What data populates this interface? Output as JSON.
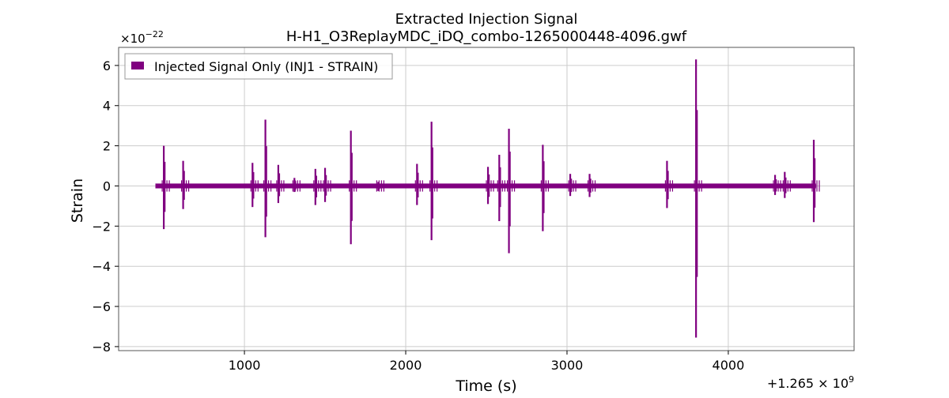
{
  "chart_data": {
    "type": "line",
    "title": "Extracted Injection Signal",
    "subtitle": "H-H1_O3ReplayMDC_iDQ_combo-1265000448-4096.gwf",
    "xlabel": "Time (s)",
    "ylabel": "Strain",
    "x_offset_label": "+1.265 × 10",
    "x_offset_exponent": "9",
    "y_scale_label": "×10",
    "y_scale_exponent": "−22",
    "xlim": [
      220,
      4780
    ],
    "ylim": [
      -8.2,
      6.9
    ],
    "x_ticks": [
      1000,
      2000,
      3000,
      4000
    ],
    "x_tick_labels": [
      "1000",
      "2000",
      "3000",
      "4000"
    ],
    "y_ticks": [
      -8,
      -6,
      -4,
      -2,
      0,
      2,
      4,
      6
    ],
    "y_tick_labels": [
      "−8",
      "−6",
      "−4",
      "−2",
      "0",
      "2",
      "4",
      "6"
    ],
    "grid": true,
    "legend_position": "top-left",
    "series": [
      {
        "name": "Injected Signal Only (INJ1 - STRAIN)",
        "color": "#800080",
        "x_range": [
          448,
          4544
        ],
        "baseline_amplitude": 0.12,
        "events": [
          {
            "x": 500,
            "y_max": 2.0,
            "y_min": -2.15
          },
          {
            "x": 620,
            "y_max": 1.25,
            "y_min": -1.15
          },
          {
            "x": 1050,
            "y_max": 1.15,
            "y_min": -1.05
          },
          {
            "x": 1130,
            "y_max": 3.3,
            "y_min": -2.55
          },
          {
            "x": 1210,
            "y_max": 1.05,
            "y_min": -0.85
          },
          {
            "x": 1310,
            "y_max": 0.4,
            "y_min": -0.3
          },
          {
            "x": 1440,
            "y_max": 0.85,
            "y_min": -0.95
          },
          {
            "x": 1500,
            "y_max": 0.9,
            "y_min": -0.8
          },
          {
            "x": 1660,
            "y_max": 2.75,
            "y_min": -2.9
          },
          {
            "x": 1830,
            "y_max": 0.2,
            "y_min": -0.25
          },
          {
            "x": 2070,
            "y_max": 1.1,
            "y_min": -0.95
          },
          {
            "x": 2160,
            "y_max": 3.2,
            "y_min": -2.7
          },
          {
            "x": 2510,
            "y_max": 0.95,
            "y_min": -0.9
          },
          {
            "x": 2580,
            "y_max": 1.55,
            "y_min": -1.75
          },
          {
            "x": 2640,
            "y_max": 2.85,
            "y_min": -3.35
          },
          {
            "x": 2850,
            "y_max": 2.05,
            "y_min": -2.25
          },
          {
            "x": 3020,
            "y_max": 0.6,
            "y_min": -0.5
          },
          {
            "x": 3140,
            "y_max": 0.6,
            "y_min": -0.55
          },
          {
            "x": 3620,
            "y_max": 1.25,
            "y_min": -1.1
          },
          {
            "x": 3800,
            "y_max": 6.3,
            "y_min": -7.55
          },
          {
            "x": 4290,
            "y_max": 0.55,
            "y_min": -0.45
          },
          {
            "x": 4350,
            "y_max": 0.7,
            "y_min": -0.6
          },
          {
            "x": 4530,
            "y_max": 2.3,
            "y_min": -1.8
          }
        ]
      }
    ]
  }
}
